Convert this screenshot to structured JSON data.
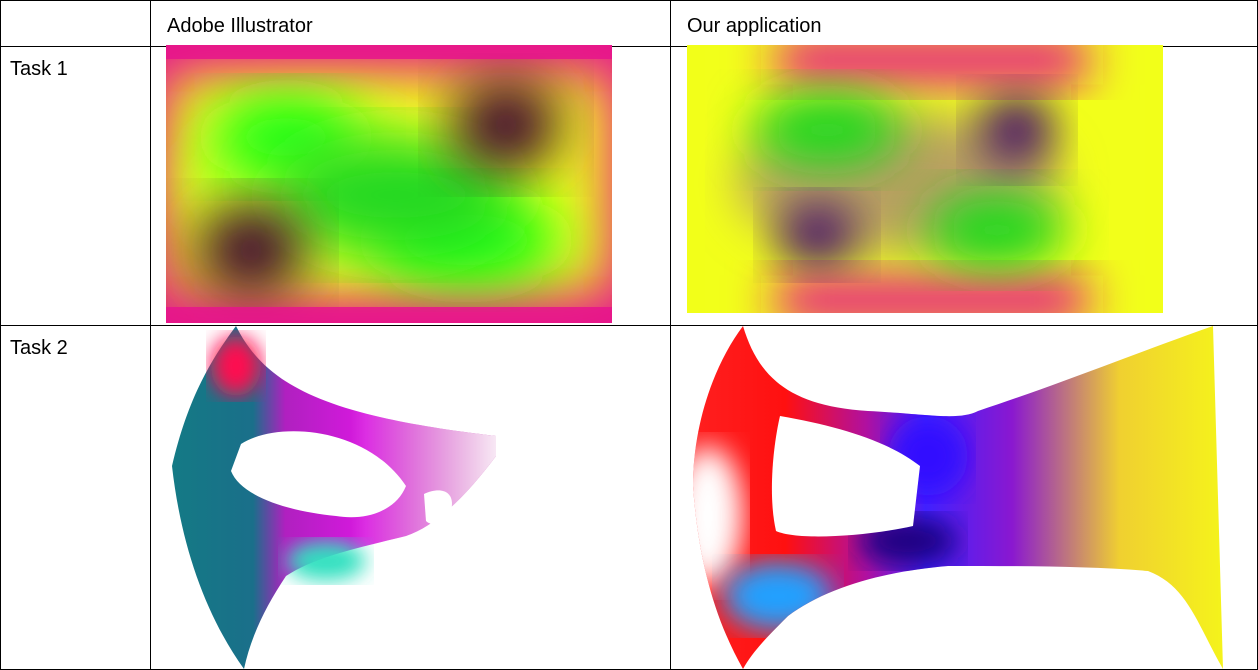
{
  "table": {
    "headers": [
      "",
      "Adobe Illustrator",
      "Our application"
    ],
    "rows": [
      {
        "label": "Task 1",
        "cells": [
          "gradient-mesh-rectangle-illustrator",
          "gradient-mesh-rectangle-our-application"
        ]
      },
      {
        "label": "Task 2",
        "cells": [
          "gradient-mesh-shape-illustrator",
          "gradient-mesh-shape-our-application"
        ]
      }
    ]
  },
  "colors": {
    "green": "#18ff18",
    "magenta": "#e6148c",
    "yellow": "#f2ff1a",
    "dark_purple": "#3c0030",
    "indigo": "#3a0070",
    "red": "#ff1010",
    "teal": "#147a85",
    "violet": "#8a18d0",
    "blue": "#4020ff"
  }
}
